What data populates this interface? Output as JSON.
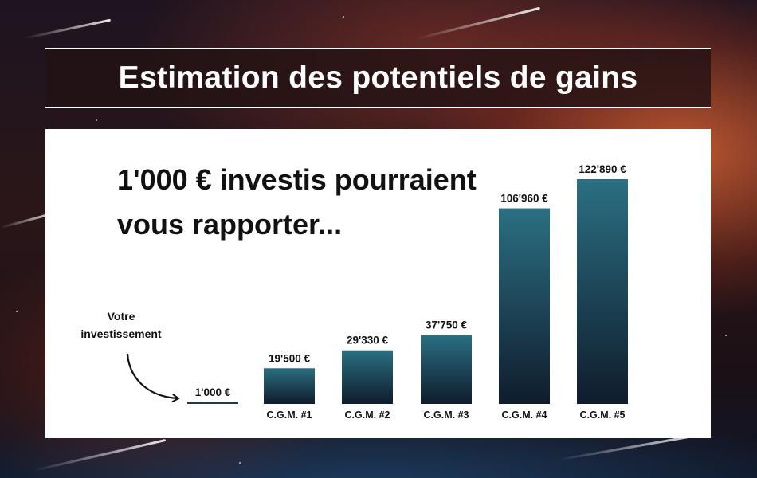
{
  "header": {
    "title": "Estimation des potentiels de gains"
  },
  "headline": {
    "line1": "1'000 € investis pourraient",
    "line2": "vous rapporter..."
  },
  "annotation": {
    "line1": "Votre",
    "line2": "investissement"
  },
  "chart_data": {
    "type": "bar",
    "categories": [
      "",
      "C.G.M. #1",
      "C.G.M. #2",
      "C.G.M. #3",
      "C.G.M. #4",
      "C.G.M. #5"
    ],
    "values": [
      1000,
      19500,
      29330,
      37750,
      106960,
      122890
    ],
    "value_labels": [
      "1'000 €",
      "19'500 €",
      "29'330 €",
      "37'750 €",
      "106'960 €",
      "122'890 €"
    ],
    "ylim": [
      0,
      122890
    ],
    "grid": false,
    "legend": "none",
    "colors": {
      "bar_top": "#2b6f82",
      "bar_bottom": "#0f1c2c",
      "baseline": "#1b3a4f"
    }
  }
}
